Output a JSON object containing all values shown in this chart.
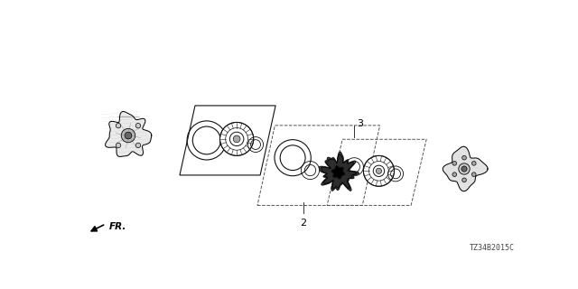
{
  "bg_color": "#ffffff",
  "part_code": "TZ34B2015C",
  "fr_label": "FR.",
  "label_2": "2",
  "label_3": "3",
  "fig_width": 6.4,
  "fig_height": 3.2,
  "line_color": "#111111",
  "dashed_color": "#555555"
}
